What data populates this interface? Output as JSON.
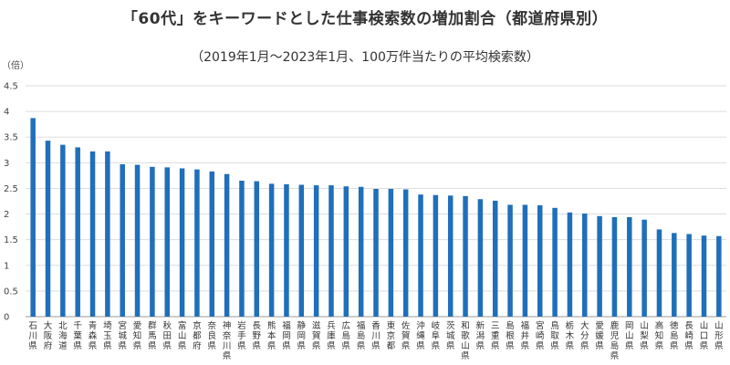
{
  "chart_data": {
    "type": "bar",
    "title": "「60代」をキーワードとした仕事検索数の増加割合（都道府県別）",
    "subtitle": "（2019年1月〜2023年1月、100万件当たりの平均検索数）",
    "ylabel": "（倍）",
    "xlabel": "",
    "ylim": [
      0,
      4.5
    ],
    "yticks": [
      "0",
      "0.5",
      "1",
      "1.5",
      "2",
      "2.5",
      "3",
      "3.5",
      "4",
      "4.5"
    ],
    "grid": true,
    "legend": "none",
    "bar_color": "#1f6fba",
    "categories": [
      "石川県",
      "大阪府",
      "北海道",
      "千葉県",
      "青森県",
      "埼玉県",
      "宮城県",
      "愛知県",
      "群馬県",
      "秋田県",
      "富山県",
      "京都府",
      "奈良県",
      "神奈川県",
      "岩手県",
      "長野県",
      "熊本県",
      "福岡県",
      "静岡県",
      "滋賀県",
      "兵庫県",
      "広島県",
      "福島県",
      "香川県",
      "東京都",
      "佐賀県",
      "沖縄県",
      "岐阜県",
      "茨城県",
      "和歌山県",
      "新潟県",
      "三重県",
      "島根県",
      "福井県",
      "宮崎県",
      "鳥取県",
      "栃木県",
      "大分県",
      "愛媛県",
      "鹿児島県",
      "岡山県",
      "山梨県",
      "高知県",
      "徳島県",
      "長崎県",
      "山口県",
      "山形県"
    ],
    "values": [
      3.87,
      3.43,
      3.35,
      3.3,
      3.22,
      3.22,
      2.97,
      2.96,
      2.92,
      2.91,
      2.89,
      2.87,
      2.83,
      2.78,
      2.65,
      2.64,
      2.59,
      2.58,
      2.57,
      2.56,
      2.56,
      2.54,
      2.53,
      2.49,
      2.49,
      2.48,
      2.38,
      2.37,
      2.36,
      2.35,
      2.29,
      2.26,
      2.18,
      2.18,
      2.17,
      2.12,
      2.03,
      2.01,
      1.96,
      1.94,
      1.94,
      1.89,
      1.7,
      1.63,
      1.61,
      1.58,
      1.57
    ]
  }
}
